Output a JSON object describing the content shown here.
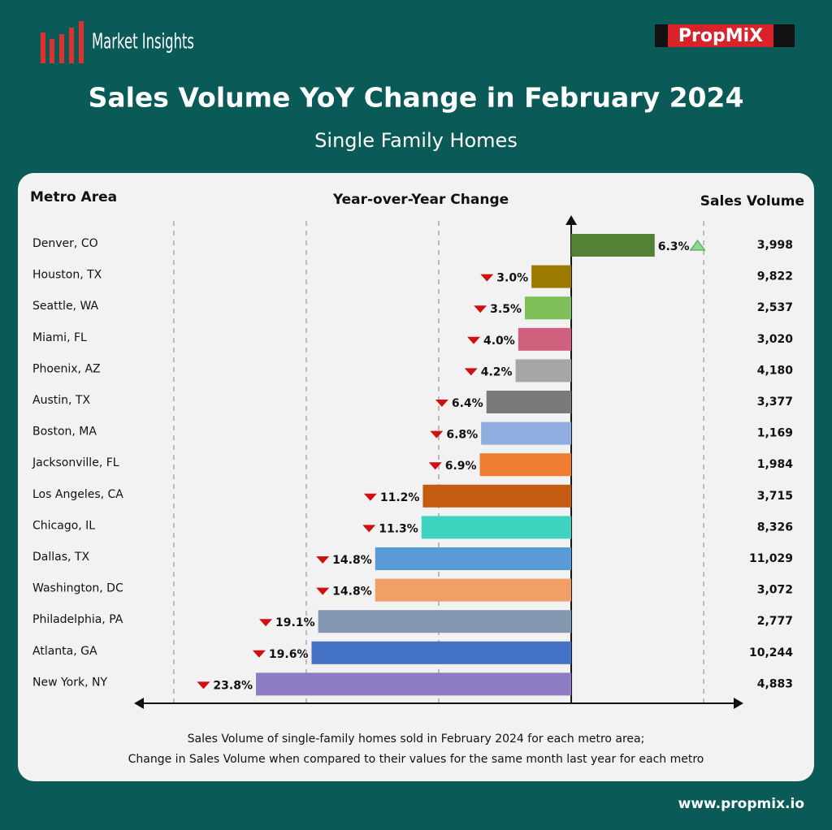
{
  "brand": "Market Insights",
  "logo": "PropMiX",
  "website": "www.propmix.io",
  "footnote": [
    "Sales Volume of single-family homes sold in February 2024 for each metro area;",
    "Change in Sales Volume when compared to their values for the same month last year for each metro"
  ],
  "chart_data": {
    "type": "bar",
    "orientation": "horizontal",
    "title": "Sales Volume YoY Change in February 2024",
    "subtitle": "Single Family Homes",
    "category_header": "Metro Area",
    "value_header": "Year-over-Year Change",
    "volume_header": "Sales Volume",
    "categories": [
      "Denver, CO",
      "Houston, TX",
      "Seattle, WA",
      "Miami, FL",
      "Phoenix, AZ",
      "Austin, TX",
      "Boston, MA",
      "Jacksonville, FL",
      "Los Angeles, CA",
      "Chicago, IL",
      "Dallas, TX",
      "Washington, DC",
      "Philadelphia, PA",
      "Atlanta, GA",
      "New York, NY"
    ],
    "values": [
      6.3,
      -3.0,
      -3.5,
      -4.0,
      -4.2,
      -6.4,
      -6.8,
      -6.9,
      -11.2,
      -11.3,
      -14.8,
      -14.8,
      -19.1,
      -19.6,
      -23.8
    ],
    "value_labels": [
      "6.3%",
      "3.0%",
      "3.5%",
      "4.0%",
      "4.2%",
      "6.4%",
      "6.8%",
      "6.9%",
      "11.2%",
      "11.3%",
      "14.8%",
      "14.8%",
      "19.1%",
      "19.6%",
      "23.8%"
    ],
    "colors": [
      "#538135",
      "#9c7a00",
      "#7fbf5a",
      "#d0607d",
      "#a6a6a6",
      "#7a7a7a",
      "#8fadde",
      "#ed7d31",
      "#c55a11",
      "#3fd4c0",
      "#5b9bd5",
      "#f0a066",
      "#8497b0",
      "#4472c4",
      "#8e7cc3"
    ],
    "sales_volume": [
      3998,
      9822,
      2537,
      3020,
      4180,
      3377,
      1169,
      1984,
      3715,
      8326,
      11029,
      3072,
      2777,
      10244,
      4883
    ],
    "sales_volume_labels": [
      "3,998",
      "9,822",
      "2,537",
      "3,020",
      "4,180",
      "3,377",
      "1,169",
      "1,984",
      "3,715",
      "8,326",
      "11,029",
      "3,072",
      "2,777",
      "10,244",
      "4,883"
    ],
    "xlim": [
      -33,
      13
    ],
    "xticks": [
      -30,
      -20,
      -10,
      10
    ],
    "grid": true
  }
}
